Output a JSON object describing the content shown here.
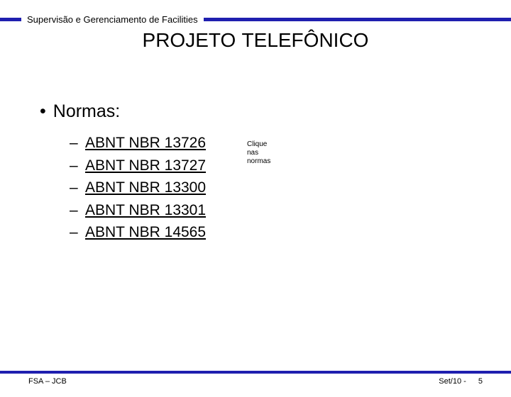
{
  "header": {
    "subtitle": "Supervisão e Gerenciamento de Facilities",
    "bar_color": "#1f1faf"
  },
  "title": "PROJETO TELEFÔNICO",
  "main": {
    "heading": "Normas:",
    "items": [
      "ABNT NBR 13726",
      "ABNT NBR 13727",
      "ABNT NBR 13300",
      "ABNT NBR 13301",
      "ABNT NBR 14565"
    ],
    "side_note_lines": [
      "Clique",
      "nas",
      "normas"
    ]
  },
  "footer": {
    "left": "FSA – JCB",
    "right_date": "Set/10 -",
    "page": "5",
    "bar_color": "#1f1faf"
  }
}
